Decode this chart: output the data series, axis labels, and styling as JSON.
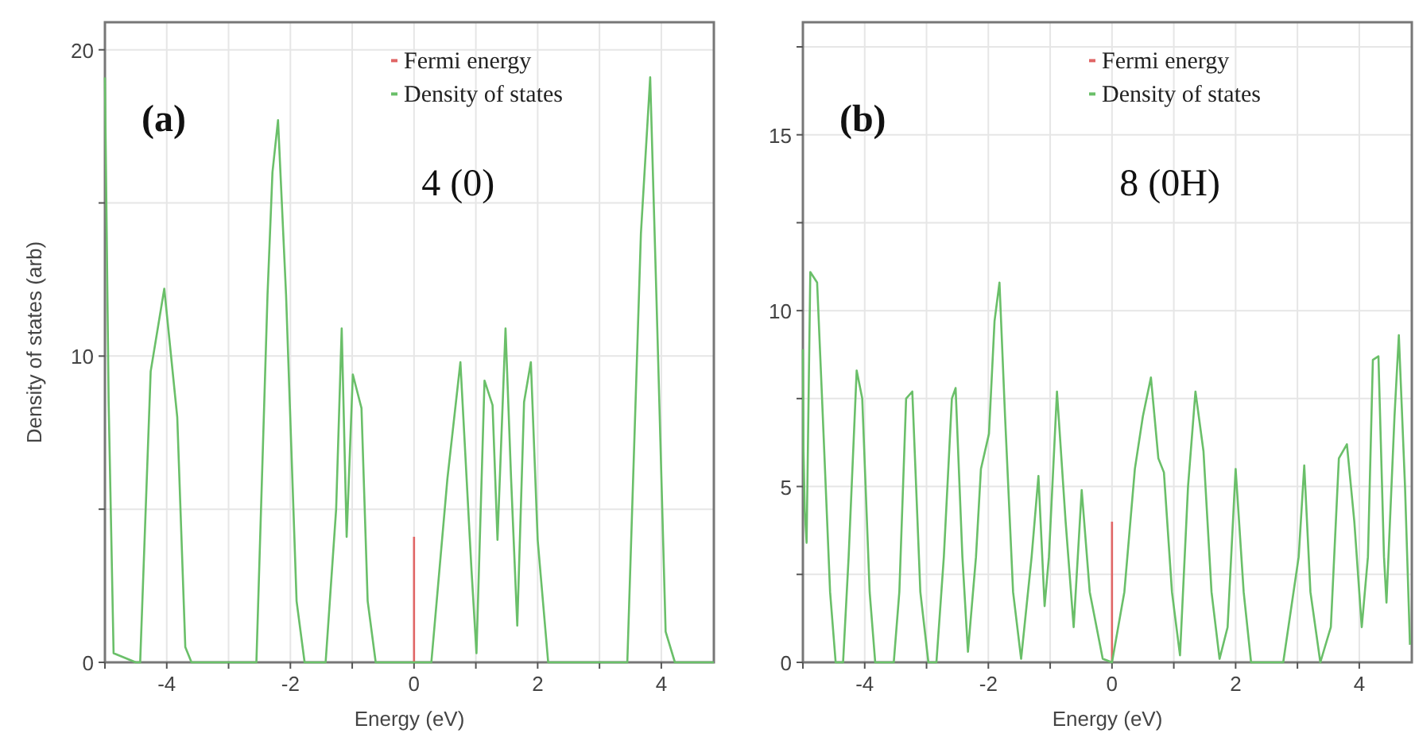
{
  "chart_data": [
    {
      "type": "line",
      "xlabel": "Energy (eV)",
      "ylabel": "Density of states (arb)",
      "xlim": [
        -5,
        4.85
      ],
      "ylim": [
        0,
        20.9
      ],
      "xticks": [
        {
          "value": -5,
          "label": null
        },
        -4,
        {
          "value": -3,
          "label": null
        },
        -2,
        {
          "value": -1,
          "label": null
        },
        0,
        {
          "value": 1,
          "label": null
        },
        2,
        {
          "value": 3,
          "label": null
        },
        4
      ],
      "yticks": [
        0,
        {
          "value": 5,
          "label": null
        },
        10,
        {
          "value": 15,
          "label": null
        },
        20
      ],
      "grid": true,
      "legend": "top right",
      "annotations": [
        "(a)",
        "4 (0)"
      ],
      "series": [
        {
          "name": "Fermi energy",
          "color": "#e06666",
          "x": [
            0,
            0
          ],
          "values": [
            0,
            4.1
          ]
        },
        {
          "name": "Density of states",
          "color": "#6abf69",
          "x": [
            -5,
            -4.94,
            -4.86,
            -4.5,
            -4.43,
            -4.26,
            -4.04,
            -3.83,
            -3.7,
            -3.6,
            -2.55,
            -2.37,
            -2.29,
            -2.2,
            -2.07,
            -1.9,
            -1.77,
            -1.43,
            -1.26,
            -1.17,
            -1.09,
            -0.99,
            -0.85,
            -0.75,
            -0.62,
            0.28,
            0.54,
            0.75,
            0.93,
            1.01,
            1.14,
            1.27,
            1.35,
            1.48,
            1.57,
            1.67,
            1.78,
            1.89,
            2.0,
            2.17,
            3.45,
            3.67,
            3.82,
            3.92,
            4.07,
            4.22,
            4.85
          ],
          "values": [
            19.1,
            8.5,
            0.3,
            0,
            0,
            9.5,
            12.2,
            8,
            0.5,
            0,
            0,
            12,
            16,
            17.7,
            12,
            2,
            0,
            0,
            5,
            10.9,
            4.1,
            9.4,
            8.3,
            2,
            0,
            0,
            6,
            9.8,
            3,
            0.3,
            9.2,
            8.4,
            4,
            10.9,
            6,
            1.2,
            8.5,
            9.8,
            4,
            0,
            0,
            14,
            19.1,
            12,
            1,
            0,
            0
          ]
        }
      ]
    },
    {
      "type": "line",
      "xlabel": "Energy (eV)",
      "xlim": [
        -5,
        4.85
      ],
      "ylim": [
        0,
        18.2
      ],
      "xticks": [
        {
          "value": -5,
          "label": null
        },
        -4,
        {
          "value": -3,
          "label": null
        },
        -2,
        {
          "value": -1,
          "label": null
        },
        0,
        {
          "value": 1,
          "label": null
        },
        2,
        {
          "value": 3,
          "label": null
        },
        4
      ],
      "yticks": [
        0,
        {
          "value": 2.5,
          "label": null
        },
        5,
        {
          "value": 7.5,
          "label": null
        },
        10,
        {
          "value": 12.5,
          "label": null
        },
        15,
        {
          "value": 17.5,
          "label": null
        }
      ],
      "grid": true,
      "legend": "top right",
      "annotations": [
        "(b)",
        "8 (0H)"
      ],
      "series": [
        {
          "name": "Fermi energy",
          "color": "#e06666",
          "x": [
            0,
            0
          ],
          "values": [
            0,
            4
          ]
        },
        {
          "name": "Density of states",
          "color": "#6abf69",
          "x": [
            -5,
            -4.99,
            -4.97,
            -4.94,
            -4.88,
            -4.77,
            -4.69,
            -4.56,
            -4.47,
            -4.35,
            -4.26,
            -4.13,
            -4.04,
            -3.92,
            -3.83,
            -3.53,
            -3.44,
            -3.33,
            -3.23,
            -3.1,
            -2.97,
            -2.84,
            -2.72,
            -2.59,
            -2.53,
            -2.42,
            -2.33,
            -2.2,
            -2.12,
            -1.99,
            -1.9,
            -1.82,
            -1.73,
            -1.6,
            -1.47,
            -1.3,
            -1.19,
            -1.09,
            -1.02,
            -0.89,
            -0.75,
            -0.62,
            -0.49,
            -0.36,
            -0.15,
            0,
            0.2,
            0.37,
            0.5,
            0.63,
            0.75,
            0.84,
            0.97,
            1.1,
            1.23,
            1.35,
            1.48,
            1.61,
            1.74,
            1.87,
            2.0,
            2.13,
            2.25,
            2.77,
            3.02,
            3.11,
            3.21,
            3.37,
            3.54,
            3.67,
            3.8,
            3.92,
            4.04,
            4.14,
            4.22,
            4.31,
            4.4,
            4.44,
            4.57,
            4.64,
            4.74,
            4.82
          ],
          "values": [
            8.9,
            6,
            4.3,
            3.4,
            11.1,
            10.8,
            7.5,
            2,
            0,
            0,
            3,
            8.3,
            7.5,
            2,
            0,
            0,
            2,
            7.5,
            7.7,
            2,
            0,
            0,
            3,
            7.5,
            7.8,
            3,
            0.3,
            3,
            5.5,
            6.5,
            9.7,
            10.8,
            7,
            2,
            0.1,
            3,
            5.3,
            1.6,
            3,
            7.7,
            4,
            1,
            4.9,
            2,
            0.1,
            0,
            2,
            5.5,
            7,
            8.1,
            5.8,
            5.4,
            2,
            0.2,
            5,
            7.7,
            6,
            2,
            0.1,
            1,
            5.5,
            2,
            0,
            0,
            3,
            5.6,
            2,
            0,
            1,
            5.8,
            6.2,
            4,
            1,
            3,
            8.6,
            8.7,
            3,
            1.7,
            7,
            9.3,
            5,
            0.5
          ]
        }
      ]
    }
  ]
}
